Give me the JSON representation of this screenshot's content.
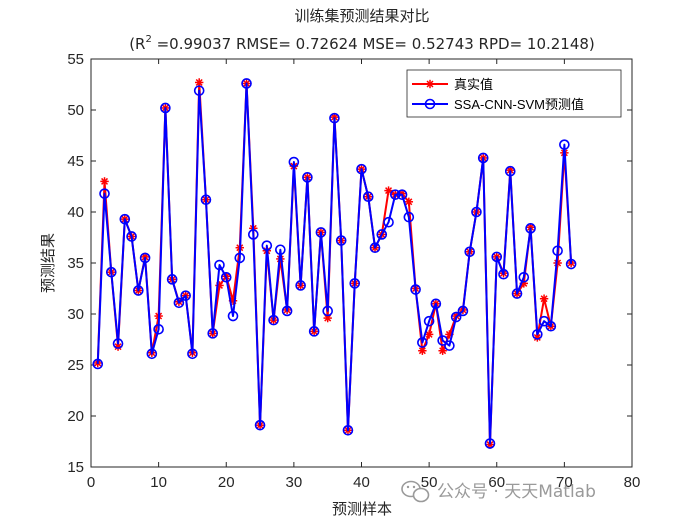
{
  "chart_data": {
    "type": "line",
    "title": "训练集预测结果对比",
    "subtitle_parts": {
      "prefix": "(R",
      "sup": "2",
      "rest": " =0.99037 RMSE= 0.72624 MSE= 0.52743 RPD= 10.2148)"
    },
    "xlabel": "预测样本",
    "ylabel": "预测结果",
    "xlim": [
      0,
      80
    ],
    "ylim": [
      15,
      55
    ],
    "xticks": [
      "0",
      "10",
      "20",
      "30",
      "40",
      "50",
      "60",
      "70",
      "80"
    ],
    "yticks": [
      "15",
      "20",
      "25",
      "30",
      "35",
      "40",
      "45",
      "50",
      "55"
    ],
    "legend_position": "top-right",
    "grid": false,
    "series": [
      {
        "name": "真实值",
        "color": "#ff0000",
        "marker": "asterisk",
        "values": [
          25.2,
          43.0,
          34.1,
          26.8,
          39.3,
          37.6,
          32.3,
          35.6,
          26.2,
          29.8,
          50.2,
          33.4,
          31.2,
          31.8,
          26.2,
          52.7,
          41.2,
          28.1,
          32.8,
          33.7,
          31.3,
          36.5,
          52.6,
          38.4,
          19.1,
          36.2,
          29.4,
          35.4,
          30.4,
          44.5,
          32.8,
          43.4,
          28.3,
          38.0,
          29.6,
          49.3,
          37.2,
          18.6,
          33.0,
          44.2,
          41.5,
          36.5,
          37.8,
          42.1,
          41.7,
          41.8,
          41.0,
          32.5,
          26.4,
          28.0,
          31.0,
          26.4,
          28.0,
          29.8,
          30.4,
          36.1,
          40.0,
          45.3,
          17.2,
          35.6,
          34.0,
          44.1,
          32.0,
          33.0,
          38.5,
          27.7,
          31.5,
          28.8,
          35.0,
          45.8,
          35.0
        ]
      },
      {
        "name": "SSA-CNN-SVM预测值",
        "color": "#0000ff",
        "marker": "circle",
        "values": [
          25.1,
          41.8,
          34.1,
          27.1,
          39.3,
          37.6,
          32.3,
          35.5,
          26.1,
          28.5,
          50.2,
          33.4,
          31.1,
          31.8,
          26.1,
          51.9,
          41.2,
          28.1,
          34.8,
          33.6,
          29.8,
          35.5,
          52.6,
          37.8,
          19.1,
          36.7,
          29.4,
          36.3,
          30.3,
          44.9,
          32.8,
          43.4,
          28.3,
          38.0,
          30.3,
          49.2,
          37.2,
          18.6,
          33.0,
          44.2,
          41.5,
          36.5,
          37.8,
          39.0,
          41.7,
          41.7,
          39.5,
          32.4,
          27.2,
          29.3,
          31.0,
          27.4,
          26.9,
          29.7,
          30.3,
          36.1,
          40.0,
          45.3,
          17.3,
          35.6,
          33.9,
          44.0,
          32.0,
          33.6,
          38.4,
          28.0,
          29.3,
          28.8,
          36.2,
          46.6,
          34.9
        ]
      }
    ]
  },
  "watermark": {
    "text": "公众号 · 天天Matlab"
  }
}
